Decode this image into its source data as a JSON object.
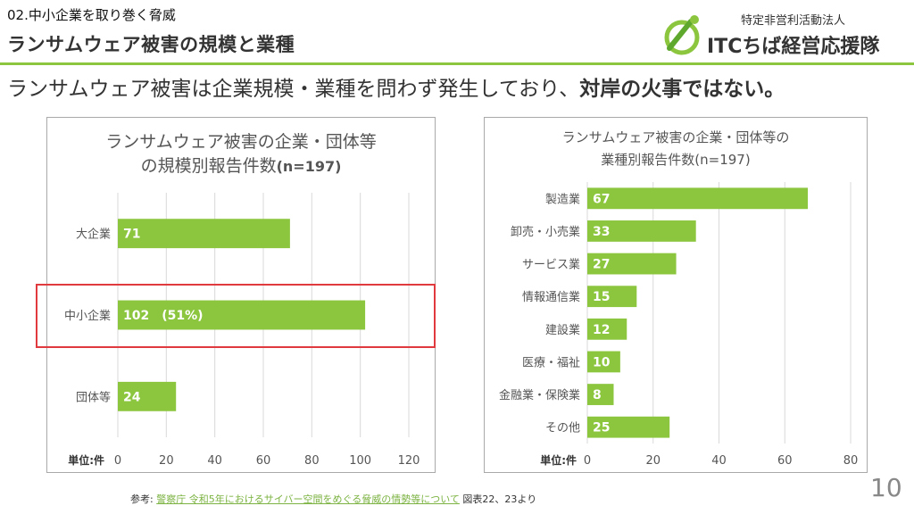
{
  "header": {
    "section_label": "02.中小企業を取り巻く脅威",
    "title": "ランサムウェア被害の規模と業種",
    "subtitle_plain": "ランサムウェア被害は企業規模・業種を問わず発生しており、",
    "subtitle_emphasis": "対岸の火事ではない。"
  },
  "logo": {
    "org_type": "特定非営利活動法人",
    "org_name": "ITCちば経営応援隊"
  },
  "footer": {
    "ref_prefix": "参考: ",
    "ref_link_text": "警察庁 令和5年におけるサイバー空間をめぐる脅威の情勢等について",
    "ref_suffix": " 図表22、23より",
    "page_number": "10"
  },
  "colors": {
    "bar": "#8cc63f",
    "grid": "#d9d9d9",
    "highlight": "#e0393e",
    "accent_rule": "#8cc63f"
  },
  "chart_data": [
    {
      "type": "bar",
      "orientation": "horizontal",
      "title_line1": "ランサムウェア被害の企業・団体等",
      "title_line2": "の規模別報告件数",
      "title_n": "(n=197)",
      "unit_label": "単位:件",
      "categories": [
        "大企業",
        "中小企業",
        "団体等"
      ],
      "values": [
        71,
        102,
        24
      ],
      "data_labels": [
        "71",
        "102　(51%)",
        "24"
      ],
      "xlim": [
        0,
        120
      ],
      "xticks": [
        0,
        20,
        40,
        60,
        80,
        100,
        120
      ],
      "highlighted_category": "中小企業"
    },
    {
      "type": "bar",
      "orientation": "horizontal",
      "title_line1": "ランサムウェア被害の企業・団体等の",
      "title_line2": "業種別報告件数(n=197)",
      "unit_label": "単位:件",
      "categories": [
        "製造業",
        "卸売・小売業",
        "サービス業",
        "情報通信業",
        "建設業",
        "医療・福祉",
        "金融業・保険業",
        "その他"
      ],
      "values": [
        67,
        33,
        27,
        15,
        12,
        10,
        8,
        25
      ],
      "data_labels": [
        "67",
        "33",
        "27",
        "15",
        "12",
        "10",
        "8",
        "25"
      ],
      "xlim": [
        0,
        80
      ],
      "xticks": [
        0,
        20,
        40,
        60,
        80
      ]
    }
  ]
}
